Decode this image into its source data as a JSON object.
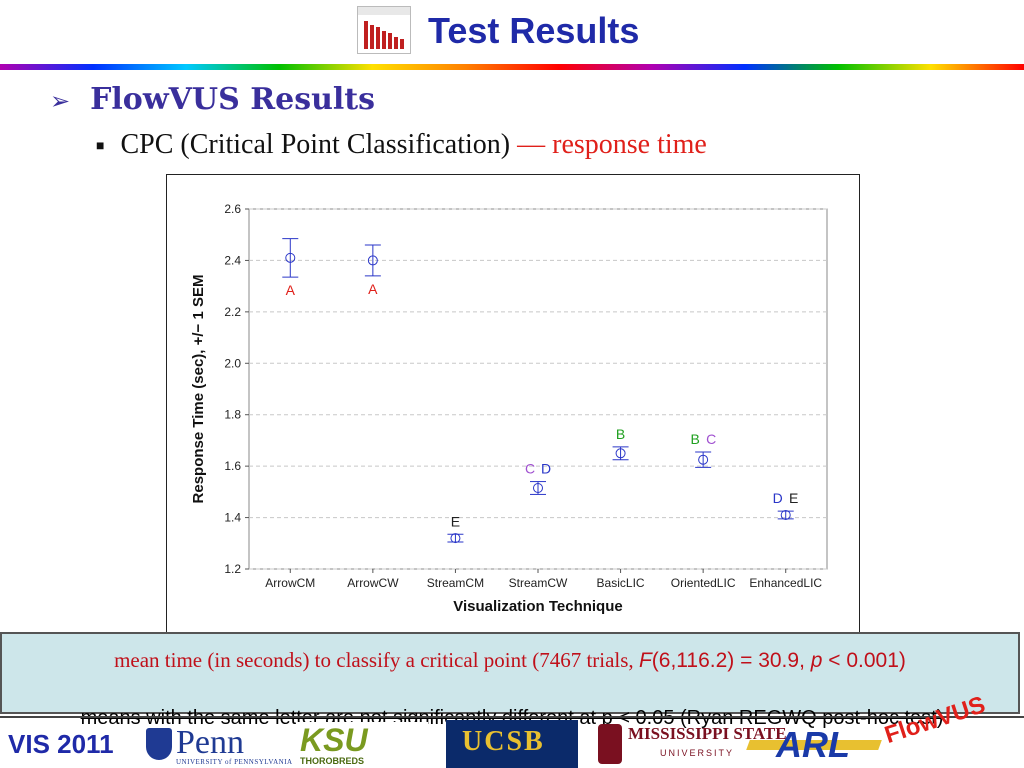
{
  "slide": {
    "title": "Test Results",
    "bullet1": "FlowVUS Results",
    "bullet1_icon": "arrowhead-bullet-icon",
    "bullet2_prefix": "CPC (Critical Point Classification)",
    "bullet2_suffix": "— response time"
  },
  "caption": {
    "line_a": "mean  time  (in  seconds)  to  classify  a  critical point  (7467 trials, ",
    "f_symbol": "F",
    "f_stat": "(6,116.2) = 30.9, ",
    "p_symbol": "p",
    "p_stat": " < 0.001)",
    "overlap_text": "means with the same letter are not significantly different at p < 0.05 (Ryan REGWQ post-hoc test)"
  },
  "footer": {
    "conference": "VIS 2011",
    "penn": "Penn",
    "penn_sub": "UNIVERSITY of PENNSYLVANIA",
    "ksu": "KSU",
    "ksu_sub": "THOROBREDS",
    "ucsb": "UCSB",
    "msu": "MISSISSIPPI STATE",
    "msu_sub": "UNIVERSITY",
    "arl": "ARL",
    "flowvus": "FlowVUS"
  },
  "colors": {
    "title_blue": "#1f2aa8",
    "bullet_purple": "#3a2f9c",
    "highlight_red": "#e0201a",
    "point_blue": "#2a36c8",
    "caption_bg": "#cde6ea"
  },
  "chart_data": {
    "type": "scatter",
    "xlabel": "Visualization Technique",
    "ylabel": "Response Time (sec), +/− 1 SEM",
    "categories": [
      "ArrowCM",
      "ArrowCW",
      "StreamCM",
      "StreamCW",
      "BasicLIC",
      "OrientedLIC",
      "EnhancedLIC"
    ],
    "means": [
      2.41,
      2.4,
      1.32,
      1.515,
      1.65,
      1.625,
      1.41
    ],
    "sem": [
      0.075,
      0.06,
      0.015,
      0.025,
      0.025,
      0.03,
      0.015
    ],
    "groups": [
      [
        {
          "letter": "A",
          "color": "#e0201a"
        }
      ],
      [
        {
          "letter": "A",
          "color": "#e0201a"
        }
      ],
      [
        {
          "letter": "E",
          "color": "#222222"
        }
      ],
      [
        {
          "letter": "C",
          "color": "#a050d0"
        },
        {
          "letter": "D",
          "color": "#2a36c8"
        }
      ],
      [
        {
          "letter": "B",
          "color": "#20a020"
        }
      ],
      [
        {
          "letter": "B",
          "color": "#20a020"
        },
        {
          "letter": "C",
          "color": "#a050d0"
        }
      ],
      [
        {
          "letter": "D",
          "color": "#2a36c8"
        },
        {
          "letter": "E",
          "color": "#222222"
        }
      ]
    ],
    "yticks": [
      "1.2",
      "1.4",
      "1.6",
      "1.8",
      "2.0",
      "2.2",
      "2.4",
      "2.6"
    ],
    "ylim": [
      1.2,
      2.6
    ],
    "grid": true
  }
}
